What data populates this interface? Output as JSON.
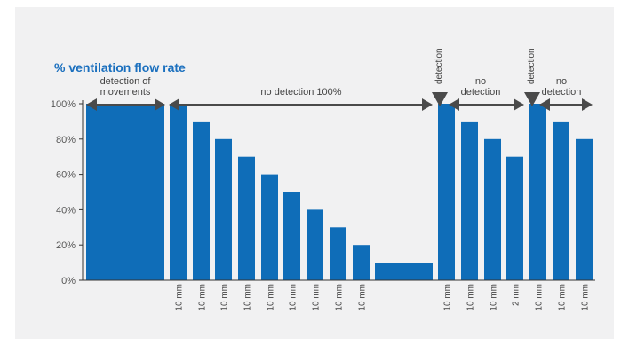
{
  "chart_data": {
    "type": "bar",
    "title": "% ventilation flow rate",
    "ylabel": "",
    "xlabel": "",
    "ylim": [
      0,
      100
    ],
    "yticks": [
      0,
      20,
      40,
      60,
      80,
      100
    ],
    "ytick_labels": [
      "0%",
      "20%",
      "40%",
      "60%",
      "80%",
      "100%"
    ],
    "grid": false,
    "bar_color": "#0f6db8",
    "axis_color": "#333333",
    "arrow_color": "#4a4a4a",
    "bars": [
      {
        "value": 100,
        "label": ""
      },
      {
        "value": 100,
        "label": "10 mm"
      },
      {
        "value": 90,
        "label": "10 mm"
      },
      {
        "value": 80,
        "label": "10 mm"
      },
      {
        "value": 70,
        "label": "10 mm"
      },
      {
        "value": 60,
        "label": "10 mm"
      },
      {
        "value": 50,
        "label": "10 mm"
      },
      {
        "value": 40,
        "label": "10 mm"
      },
      {
        "value": 30,
        "label": "10 mm"
      },
      {
        "value": 20,
        "label": "10 mm"
      },
      {
        "value": 10,
        "label": ""
      },
      {
        "value": 100,
        "label": "10 mm"
      },
      {
        "value": 90,
        "label": "10 mm"
      },
      {
        "value": 80,
        "label": "10 mm"
      },
      {
        "value": 70,
        "label": "2 mm"
      },
      {
        "value": 100,
        "label": "10 mm"
      },
      {
        "value": 90,
        "label": "10 mm"
      },
      {
        "value": 80,
        "label": "10 mm"
      }
    ],
    "annotations": {
      "detection_of_movements": [
        "detection of",
        "movements"
      ],
      "no_detection_100": "no detection 100%",
      "detection_marker": "detection",
      "no_detection": [
        "no",
        "detection"
      ]
    }
  }
}
